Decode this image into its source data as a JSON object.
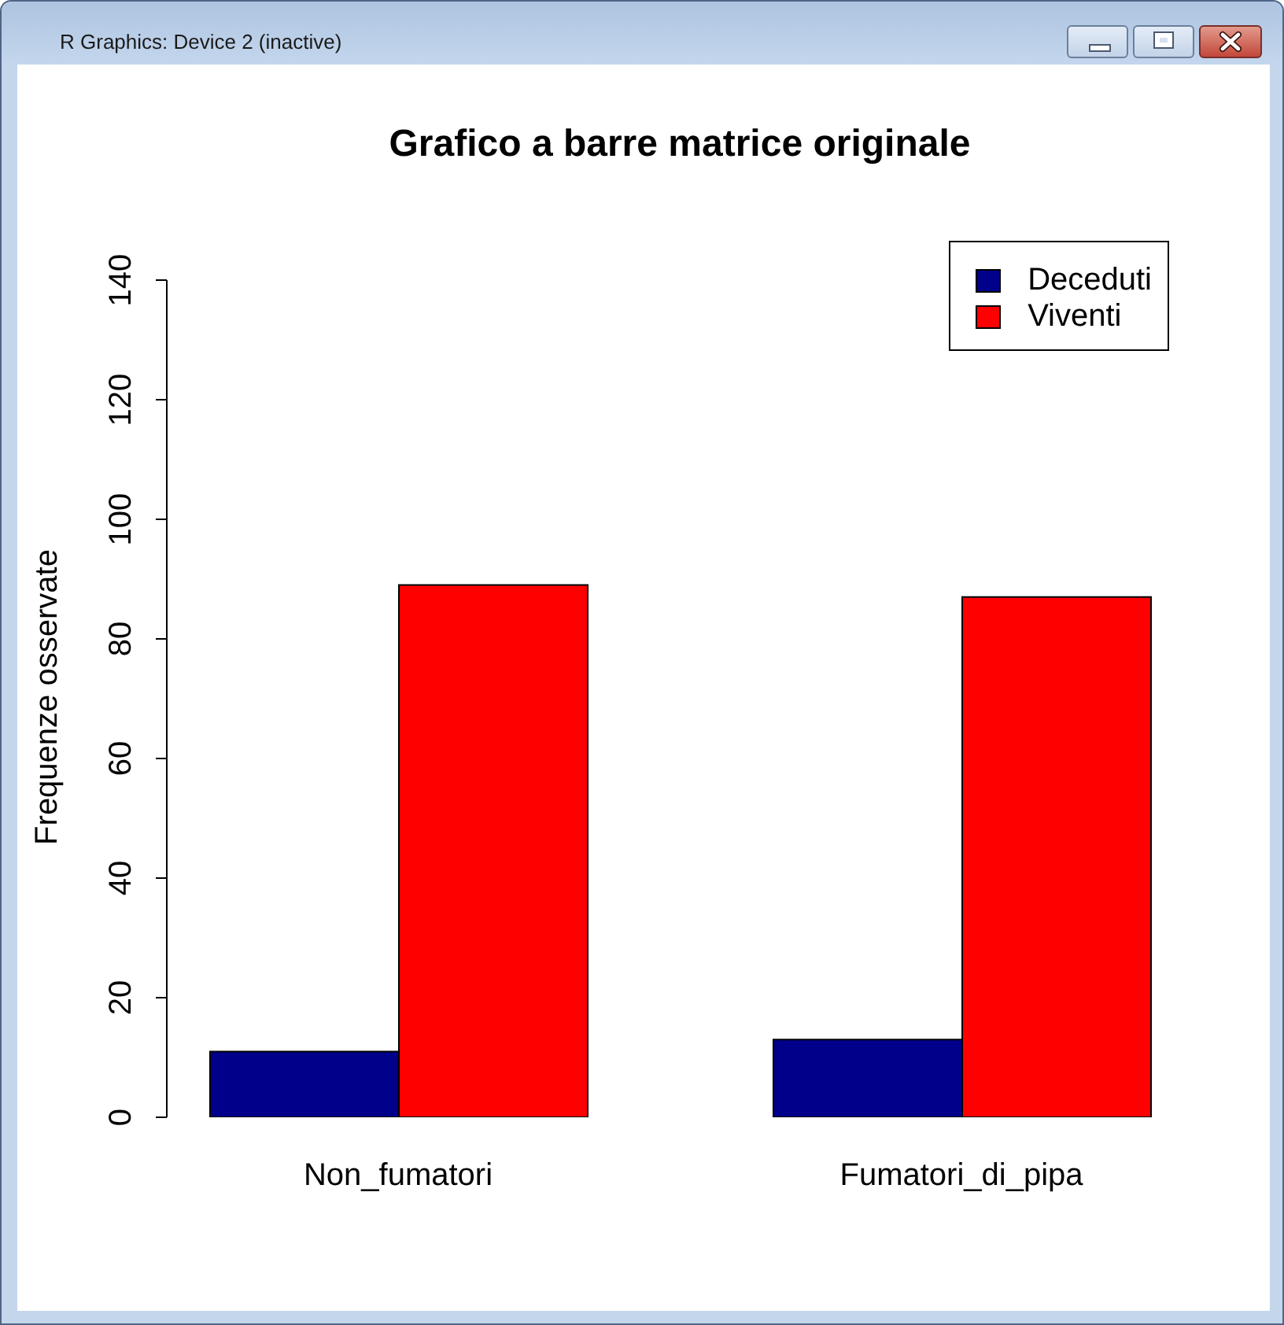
{
  "chart_data": {
    "type": "bar",
    "title": "Grafico a barre matrice originale",
    "ylabel": "Frequenze osservate",
    "categories": [
      "Non_fumatori",
      "Fumatori_di_pipa"
    ],
    "series": [
      {
        "name": "Deceduti",
        "color": "#00008b",
        "values": [
          11,
          13
        ]
      },
      {
        "name": "Viventi",
        "color": "#ff0000",
        "values": [
          89,
          87
        ]
      }
    ],
    "ylim": [
      0,
      140
    ],
    "yticks": [
      0,
      20,
      40,
      60,
      80,
      100,
      120,
      140
    ],
    "legend": "top right",
    "annotations": [
      "R Graphics: Device 2 (inactive)"
    ]
  }
}
